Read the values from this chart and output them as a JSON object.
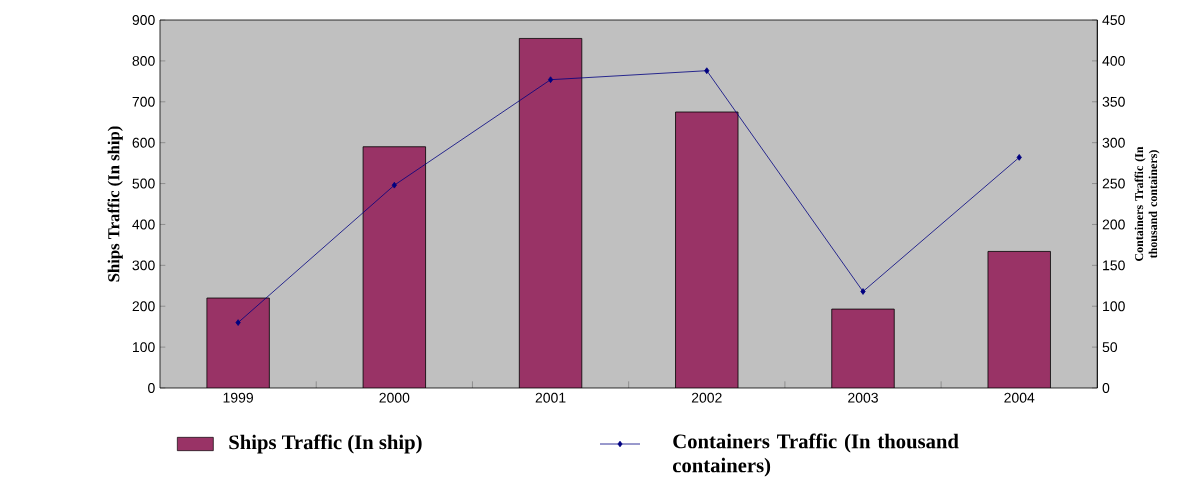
{
  "chart_data": {
    "type": "bar",
    "categories": [
      "1999",
      "2000",
      "2001",
      "2002",
      "2003",
      "2004"
    ],
    "ylabel": "Ships Traffic (In ship)",
    "y2label": "Containers Traffic (In thousand containers)",
    "series": [
      {
        "name": "Ships Traffic (In ship)",
        "color": "#993366",
        "values": [
          220,
          590,
          855,
          675,
          193,
          334
        ]
      },
      {
        "name": "Containers Traffic (In thousand containers)",
        "type": "line",
        "axis": "y2",
        "color": "#000080",
        "values": [
          80,
          248,
          377,
          388,
          118,
          282
        ]
      }
    ],
    "ylim": [
      0,
      900
    ],
    "yticks": [
      0,
      100,
      200,
      300,
      400,
      500,
      600,
      700,
      800,
      900
    ],
    "y2lim": [
      0,
      450
    ],
    "y2ticks": [
      0,
      50,
      100,
      150,
      200,
      250,
      300,
      350,
      400,
      450
    ],
    "marker": "diamond",
    "legend": "bottom"
  }
}
